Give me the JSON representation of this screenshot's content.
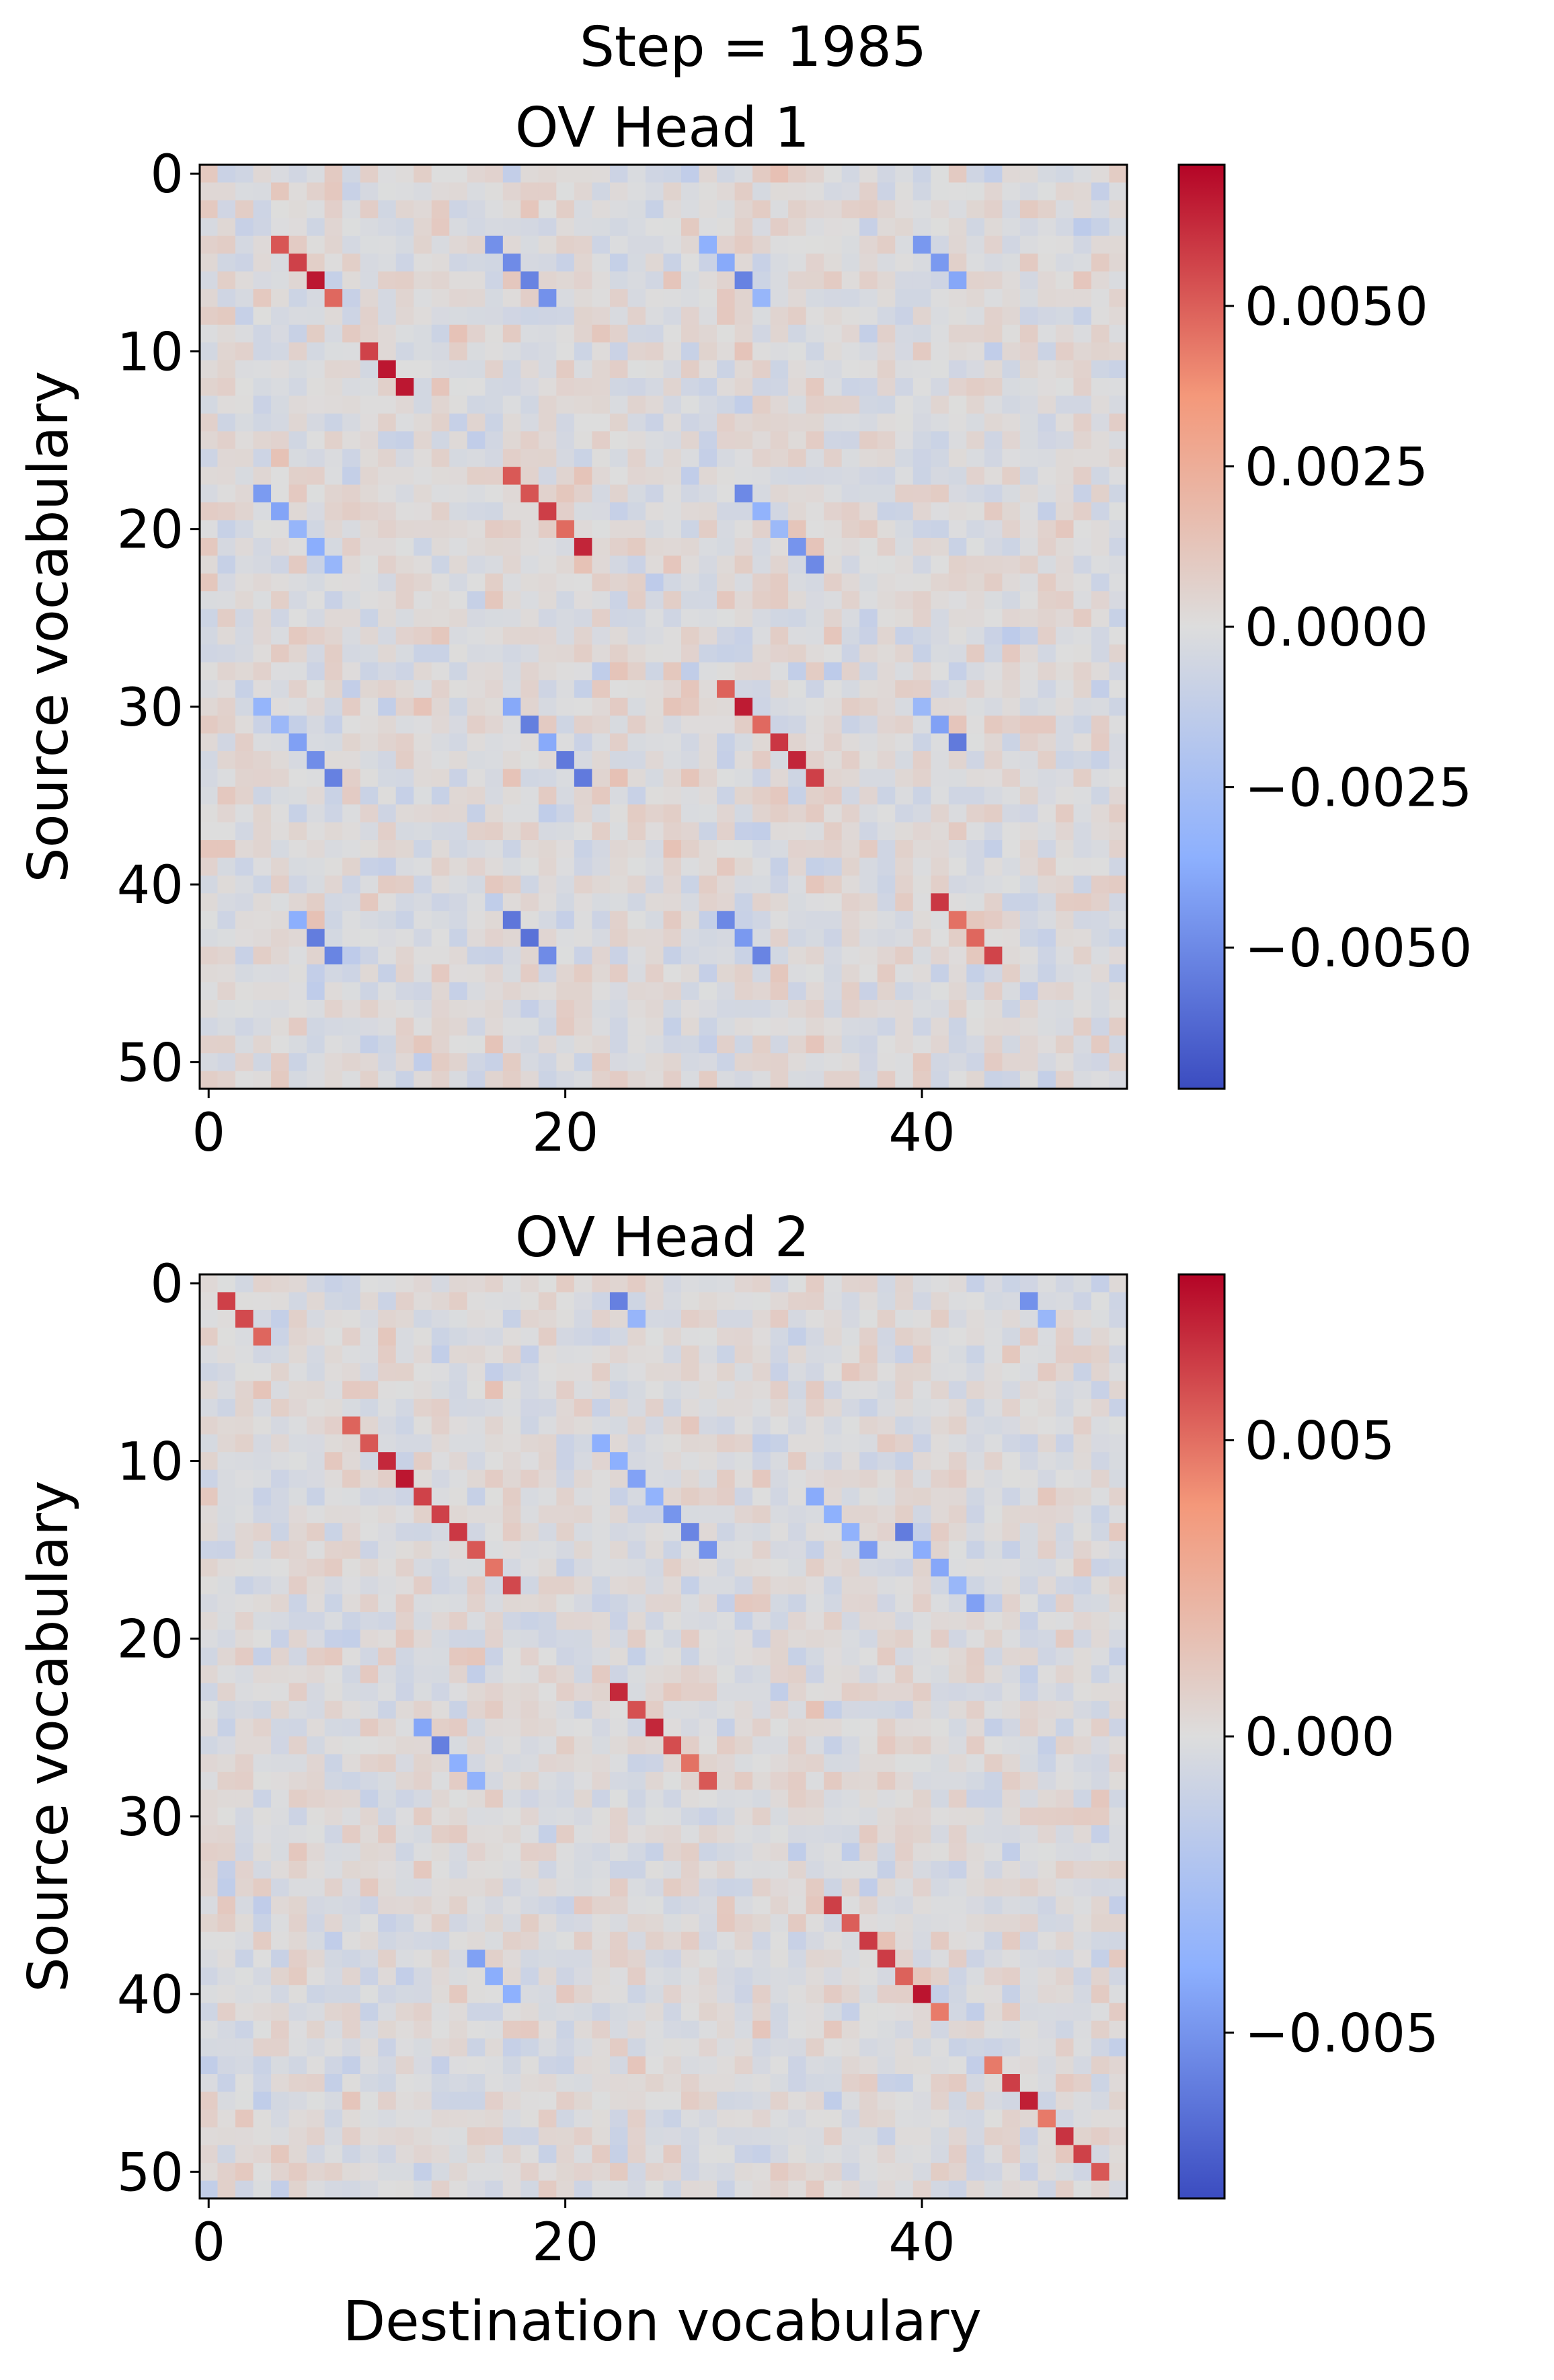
{
  "figure": {
    "suptitle": "Step = 1985",
    "xlabel": "Destination vocabulary"
  },
  "chart_data": [
    {
      "type": "heatmap",
      "title": "OV Head 1",
      "ylabel": "Source vocabulary",
      "xlabel": "",
      "rows": 52,
      "cols": 52,
      "x_ticks": [
        "0",
        "20",
        "40"
      ],
      "x_tick_values": [
        0,
        20,
        40
      ],
      "y_ticks": [
        "0",
        "10",
        "20",
        "30",
        "40",
        "50"
      ],
      "y_tick_values": [
        0,
        10,
        20,
        30,
        40,
        50
      ],
      "colormap": "coolwarm",
      "vmin": -0.0072,
      "vmax": 0.0072,
      "colorbar_ticks": [
        "0.0050",
        "0.0025",
        "0.0000",
        "−0.0025",
        "−0.0050"
      ],
      "colorbar_tick_values": [
        0.005,
        0.0025,
        0.0,
        -0.0025,
        -0.005
      ],
      "structure": {
        "positive_diagonal_runs": [
          [
            4,
            4,
            4
          ],
          [
            17,
            17,
            5
          ],
          [
            29,
            29,
            6
          ],
          [
            41,
            41,
            4
          ],
          [
            10,
            9,
            3
          ]
        ],
        "negative_diagonal_runs": [
          [
            4,
            16,
            4
          ],
          [
            4,
            28,
            4
          ],
          [
            4,
            40,
            3
          ],
          [
            18,
            3,
            5
          ],
          [
            18,
            30,
            5
          ],
          [
            30,
            3,
            5
          ],
          [
            30,
            17,
            5
          ],
          [
            30,
            40,
            3
          ],
          [
            42,
            5,
            3
          ],
          [
            42,
            17,
            3
          ],
          [
            42,
            29,
            3
          ]
        ],
        "peak_positive": 0.0068,
        "peak_negative": -0.0062
      }
    },
    {
      "type": "heatmap",
      "title": "OV Head 2",
      "ylabel": "Source vocabulary",
      "xlabel": "Destination vocabulary",
      "rows": 52,
      "cols": 52,
      "x_ticks": [
        "0",
        "20",
        "40"
      ],
      "x_tick_values": [
        0,
        20,
        40
      ],
      "y_ticks": [
        "0",
        "10",
        "20",
        "30",
        "40",
        "50"
      ],
      "y_tick_values": [
        0,
        10,
        20,
        30,
        40,
        50
      ],
      "colormap": "coolwarm",
      "vmin": -0.0078,
      "vmax": 0.0078,
      "colorbar_ticks": [
        "0.005",
        "0.000",
        "−0.005"
      ],
      "colorbar_tick_values": [
        0.005,
        0.0,
        -0.005
      ],
      "structure": {
        "positive_diagonal_runs": [
          [
            1,
            1,
            3
          ],
          [
            8,
            8,
            10
          ],
          [
            23,
            23,
            6
          ],
          [
            35,
            35,
            7
          ],
          [
            44,
            44,
            7
          ]
        ],
        "negative_diagonal_runs": [
          [
            9,
            22,
            7
          ],
          [
            12,
            34,
            4
          ],
          [
            14,
            39,
            5
          ],
          [
            25,
            12,
            4
          ],
          [
            38,
            15,
            3
          ],
          [
            1,
            23,
            2
          ],
          [
            1,
            46,
            2
          ]
        ],
        "peak_positive": 0.0074,
        "peak_negative": -0.0066
      }
    }
  ]
}
